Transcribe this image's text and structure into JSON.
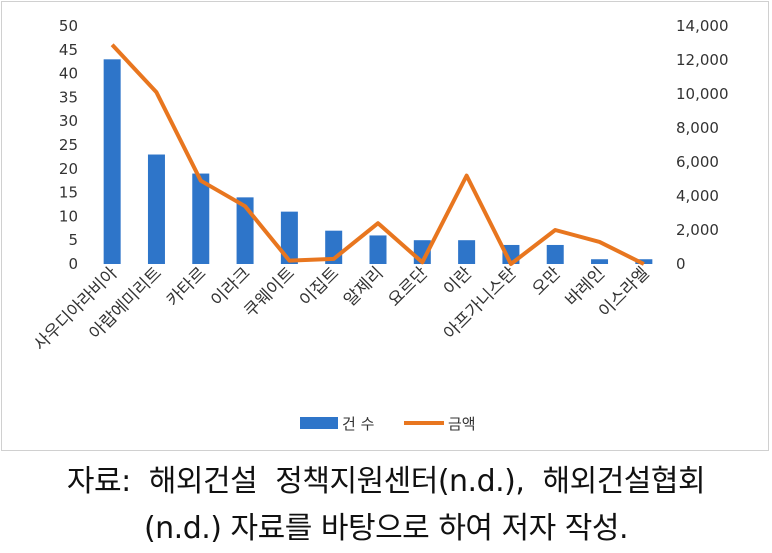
{
  "chart_data": {
    "type": "bar",
    "categories": [
      "사우디아라비아",
      "아랍에미리트",
      "카타르",
      "이라크",
      "쿠웨이트",
      "이집트",
      "알제리",
      "요르단",
      "이란",
      "아프가니스탄",
      "오만",
      "바레인",
      "이스라엘"
    ],
    "series": [
      {
        "name": "건 수",
        "type": "bar",
        "axis": "left",
        "color": "#2e75c9",
        "values": [
          43,
          23,
          19,
          14,
          11,
          7,
          6,
          5,
          5,
          4,
          4,
          1,
          1
        ]
      },
      {
        "name": "금액",
        "type": "line",
        "axis": "right",
        "color": "#e8761f",
        "values": [
          12900,
          10100,
          4900,
          3400,
          200,
          300,
          2400,
          100,
          5200,
          0,
          2000,
          1300,
          0
        ]
      }
    ],
    "ylim_left": [
      0,
      50
    ],
    "ylim_right": [
      0,
      14000
    ],
    "left_ticks": [
      "0",
      "5",
      "10",
      "15",
      "20",
      "25",
      "30",
      "35",
      "40",
      "45",
      "50"
    ],
    "right_ticks": [
      "0",
      "2,000",
      "4,000",
      "6,000",
      "8,000",
      "10,000",
      "12,000",
      "14,000"
    ],
    "grid": false,
    "legend": "bottom",
    "title": "",
    "xlabel": "",
    "ylabel": ""
  },
  "source_note": {
    "line1": "자료:  해외건설  정책지원센터(n.d.),  해외건설협회",
    "line2": "(n.d.) 자료를 바탕으로 하여 저자 작성."
  }
}
